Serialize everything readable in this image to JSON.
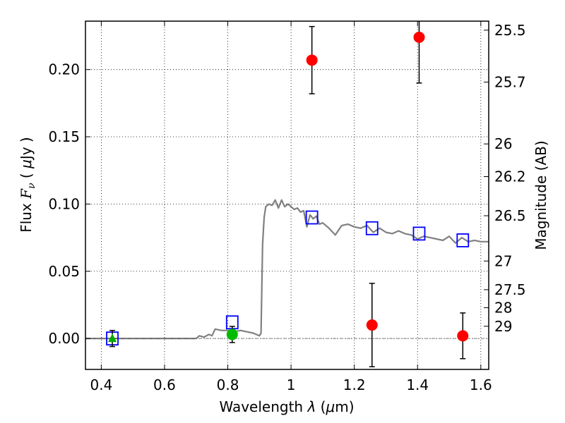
{
  "chart_data": {
    "type": "scatter",
    "xlabel": "Wavelength  λ (μm)",
    "ylabel": "Flux  F_ν  ( μJy )",
    "y2label": "Magnitude (AB)",
    "xlim": [
      0.35,
      1.625
    ],
    "ylim": [
      -0.023,
      0.236
    ],
    "grid": true,
    "x_ticks": [
      0.4,
      0.6,
      0.8,
      1.0,
      1.2,
      1.4,
      1.6
    ],
    "x_tick_labels": [
      "0.4",
      "0.6",
      "0.8",
      "1",
      "1.2",
      "1.4",
      "1.6"
    ],
    "y_ticks": [
      0.0,
      0.05,
      0.1,
      0.15,
      0.2
    ],
    "y_tick_labels": [
      "0.00",
      "0.05",
      "0.10",
      "0.15",
      "0.20"
    ],
    "magnitude_ticks": [
      {
        "label": "25.5",
        "flux": 0.2293
      },
      {
        "label": "25.7",
        "flux": 0.1907
      },
      {
        "label": "26",
        "flux": 0.1447
      },
      {
        "label": "26.2",
        "flux": 0.1204
      },
      {
        "label": "26.5",
        "flux": 0.0913
      },
      {
        "label": "27",
        "flux": 0.0576
      },
      {
        "label": "27.5",
        "flux": 0.0363
      },
      {
        "label": "28",
        "flux": 0.0229
      },
      {
        "label": "29",
        "flux": 0.0091
      }
    ],
    "series": [
      {
        "kind": "line",
        "color": "#808080",
        "x": [
          0.35,
          0.7,
          0.71,
          0.725,
          0.74,
          0.75,
          0.76,
          0.78,
          0.8,
          0.82,
          0.84,
          0.86,
          0.88,
          0.9,
          0.905,
          0.91,
          0.915,
          0.92,
          0.93,
          0.94,
          0.95,
          0.96,
          0.97,
          0.98,
          0.99,
          1.0,
          1.01,
          1.02,
          1.03,
          1.04,
          1.05,
          1.06,
          1.07,
          1.08,
          1.09,
          1.1,
          1.12,
          1.14,
          1.16,
          1.18,
          1.2,
          1.22,
          1.24,
          1.26,
          1.28,
          1.3,
          1.32,
          1.34,
          1.36,
          1.38,
          1.4,
          1.42,
          1.44,
          1.46,
          1.48,
          1.5,
          1.52,
          1.54,
          1.56,
          1.58,
          1.6,
          1.625
        ],
        "y": [
          0.0,
          0.0,
          0.002,
          0.001,
          0.003,
          0.002,
          0.007,
          0.006,
          0.006,
          0.005,
          0.006,
          0.005,
          0.004,
          0.002,
          0.004,
          0.07,
          0.09,
          0.098,
          0.1,
          0.099,
          0.103,
          0.097,
          0.103,
          0.098,
          0.1,
          0.098,
          0.096,
          0.097,
          0.094,
          0.095,
          0.083,
          0.092,
          0.089,
          0.091,
          0.085,
          0.086,
          0.082,
          0.077,
          0.084,
          0.085,
          0.083,
          0.082,
          0.084,
          0.079,
          0.082,
          0.079,
          0.078,
          0.08,
          0.078,
          0.077,
          0.074,
          0.076,
          0.075,
          0.074,
          0.073,
          0.076,
          0.071,
          0.075,
          0.072,
          0.073,
          0.072,
          0.072
        ]
      },
      {
        "kind": "hline",
        "color": "#555555",
        "y": 0.0
      },
      {
        "kind": "open-square",
        "color": "#0000ff",
        "points": [
          {
            "x": 0.435,
            "y": 0.0
          },
          {
            "x": 0.814,
            "y": 0.012
          },
          {
            "x": 1.066,
            "y": 0.09
          },
          {
            "x": 1.256,
            "y": 0.082
          },
          {
            "x": 1.405,
            "y": 0.078
          },
          {
            "x": 1.543,
            "y": 0.073
          }
        ]
      },
      {
        "kind": "triangle",
        "color": "#00aa00",
        "points": [
          {
            "x": 0.435,
            "y": 0.0,
            "yerr": 0.006
          }
        ]
      },
      {
        "kind": "circle",
        "color": "#00bb00",
        "points": [
          {
            "x": 0.814,
            "y": 0.003,
            "yerr": 0.006
          }
        ]
      },
      {
        "kind": "circle",
        "color": "#ff0000",
        "points": [
          {
            "x": 1.066,
            "y": 0.207,
            "yerr": 0.025
          },
          {
            "x": 1.256,
            "y": 0.01,
            "yerr": 0.031
          },
          {
            "x": 1.405,
            "y": 0.224,
            "yerr": 0.034
          },
          {
            "x": 1.543,
            "y": 0.002,
            "yerr": 0.017
          }
        ]
      }
    ]
  }
}
